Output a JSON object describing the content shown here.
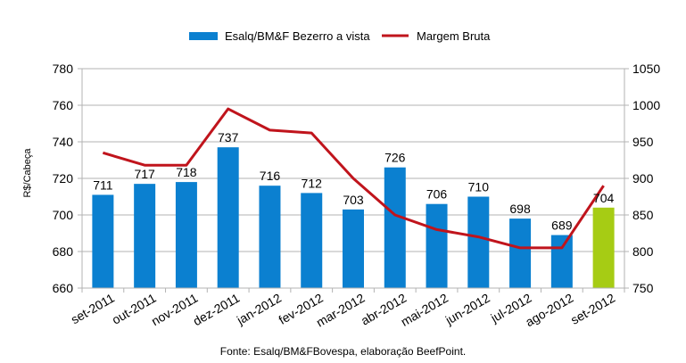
{
  "chart_data": {
    "type": "bar",
    "categories": [
      "set-2011",
      "out-2011",
      "nov-2011",
      "dez-2011",
      "jan-2012",
      "fev-2012",
      "mar-2012",
      "abr-2012",
      "mai-2012",
      "jun-2012",
      "jul-2012",
      "ago-2012",
      "set-2012"
    ],
    "series": [
      {
        "name": "Esalq/BM&F Bezerro a vista",
        "type": "bar",
        "axis": "left",
        "values": [
          711,
          717,
          718,
          737,
          716,
          712,
          703,
          726,
          706,
          710,
          698,
          689,
          704
        ],
        "color": "#0b80d0",
        "highlight_color": "#a6cc14",
        "highlight_index": 12
      },
      {
        "name": "Margem Bruta",
        "type": "line",
        "axis": "right",
        "values": [
          935,
          918,
          918,
          995,
          966,
          962,
          900,
          850,
          830,
          820,
          805,
          805,
          890
        ],
        "color": "#c0141c"
      }
    ],
    "ylabel": "R$/Cabeça",
    "ylim": [
      660,
      780
    ],
    "y_ticks": [
      660,
      680,
      700,
      720,
      740,
      760,
      780
    ],
    "y2lim": [
      750,
      1050
    ],
    "y2_ticks": [
      750,
      800,
      850,
      900,
      950,
      1000,
      1050
    ],
    "legend_position": "top",
    "grid": true
  },
  "source_note": "Fonte: Esalq/BM&FBovespa, elaboração BeefPoint."
}
